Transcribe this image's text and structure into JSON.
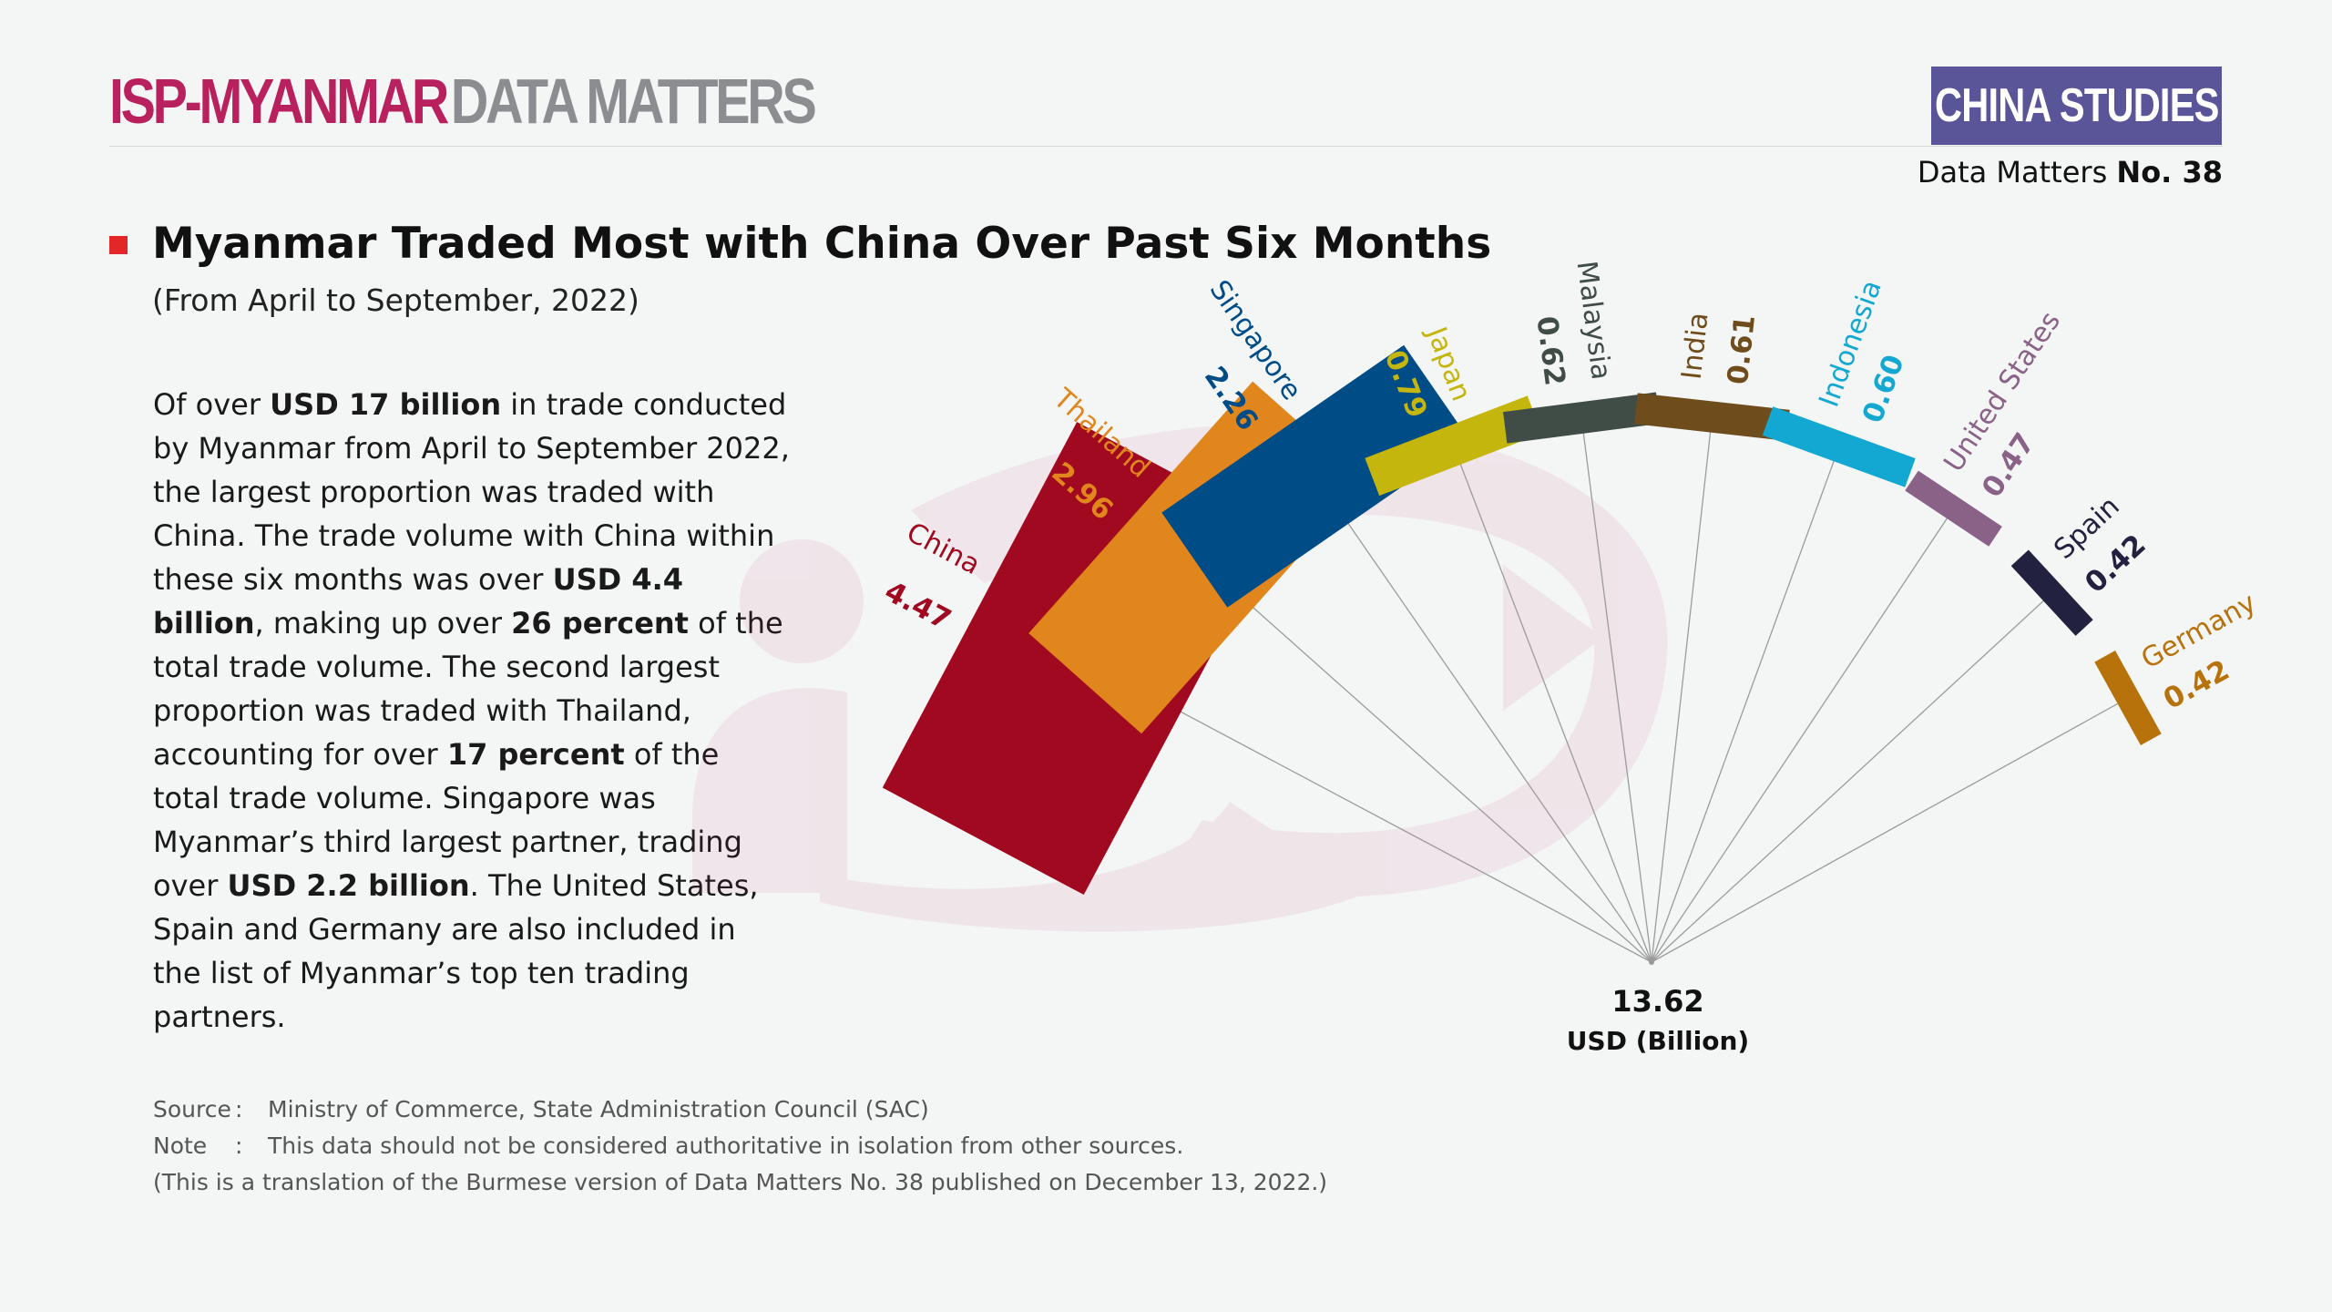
{
  "header": {
    "brand_primary": "ISP-MYANMAR",
    "brand_secondary": "DATA MATTERS",
    "tag": "CHINA STUDIES",
    "issue_prefix": "Data Matters",
    "issue_number": "No. 38"
  },
  "colors": {
    "brand": "#b8215e",
    "tag_bg": "#5a5498",
    "bullet": "#e32628"
  },
  "content": {
    "title": "Myanmar Traded Most with China Over Past Six Months",
    "subtitle": "(From April to September, 2022)",
    "body": [
      {
        "t": "Of over "
      },
      {
        "t": "USD 17 billion",
        "b": true
      },
      {
        "t": " in trade conducted by Myanmar from April to September 2022, the largest proportion was traded with China. The trade volume with China within these six months was over "
      },
      {
        "t": "USD 4.4 billion",
        "b": true
      },
      {
        "t": ", making up over "
      },
      {
        "t": "26 percent",
        "b": true
      },
      {
        "t": " of the total trade volume. The second largest proportion was traded with Thailand, accounting for over "
      },
      {
        "t": "17 percent",
        "b": true
      },
      {
        "t": " of the total trade volume. Singapore was Myanmar’s third largest partner, trading over "
      },
      {
        "t": "USD 2.2 billion",
        "b": true
      },
      {
        "t": ". The United States, Spain and Germany are also included in the list of Myanmar’s top ten trading partners."
      }
    ]
  },
  "chart_data": {
    "type": "bar",
    "subtype": "radial-bar",
    "categories": [
      "China",
      "Thailand",
      "Singapore",
      "Japan",
      "Malaysia",
      "India",
      "Indonesia",
      "United States",
      "Spain",
      "Germany"
    ],
    "values": [
      4.47,
      2.96,
      2.26,
      0.79,
      0.62,
      0.61,
      0.6,
      0.47,
      0.42,
      0.42
    ],
    "value_labels": [
      "4.47",
      "2.96",
      "2.26",
      "0.79",
      "0.62",
      "0.61",
      "0.60",
      "0.47",
      "0.42",
      "0.42"
    ],
    "colors": [
      "#a0091f",
      "#e0861d",
      "#004c87",
      "#c4b60c",
      "#3f4d46",
      "#6e4c1b",
      "#12a8d2",
      "#8b6287",
      "#22213f",
      "#b8720b"
    ],
    "total_label": "13.62",
    "unit": "USD (Billion)"
  },
  "footer": {
    "source_label": "Source",
    "source_text": "Ministry of Commerce, State Administration Council (SAC)",
    "note_label": "Note",
    "note_text": "This data should not be considered authoritative in isolation from other sources.",
    "translation_note": "(This is a translation of the Burmese version of Data Matters No. 38 published on December 13, 2022.)"
  }
}
